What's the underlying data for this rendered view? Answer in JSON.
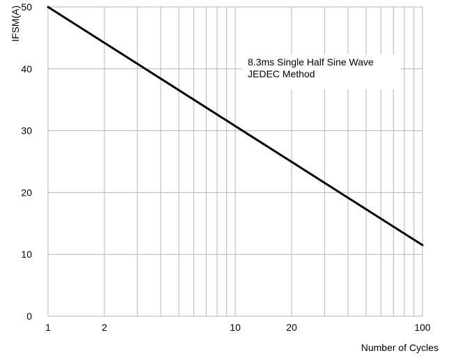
{
  "chart_data": {
    "type": "line",
    "xlabel": "Number of Cycles",
    "ylabel": "IFSM(A)",
    "x_scale": "log",
    "xlim": [
      1,
      100
    ],
    "ylim": [
      0,
      50
    ],
    "x_ticks": [
      {
        "value": 1,
        "label": "1"
      },
      {
        "value": 2,
        "label": "2"
      },
      {
        "value": 10,
        "label": "10"
      },
      {
        "value": 20,
        "label": "20"
      },
      {
        "value": 100,
        "label": "100"
      }
    ],
    "y_ticks": [
      {
        "value": 0,
        "label": "0"
      },
      {
        "value": 10,
        "label": "10"
      },
      {
        "value": 20,
        "label": "20"
      },
      {
        "value": 30,
        "label": "30"
      },
      {
        "value": 40,
        "label": "40"
      },
      {
        "value": 50,
        "label": "50"
      }
    ],
    "grid": true,
    "series": [
      {
        "x": [
          1,
          100
        ],
        "y": [
          50,
          11.5
        ]
      }
    ],
    "annotation_lines": [
      "8.3ms Single Half Sine Wave",
      "JEDEC Method"
    ],
    "colors": {
      "line": "#000000",
      "grid": "#b4b4b4",
      "text": "#000000"
    }
  }
}
